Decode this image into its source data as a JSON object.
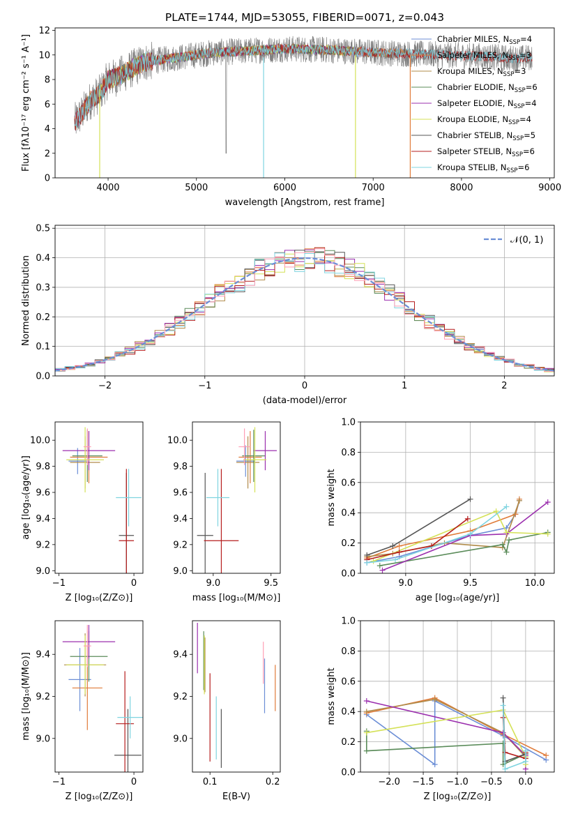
{
  "colors": {
    "palette": [
      "#6b8ed6",
      "#e07b39",
      "#b08b4a",
      "#5b8c5a",
      "#9b2fae",
      "#d4e157",
      "#555555",
      "#b51c1c",
      "#7fd4e0",
      "#ff9eb5"
    ]
  },
  "chart_data": [
    {
      "id": "spectrum",
      "type": "line",
      "title": "PLATE=1744, MJD=53055, FIBERID=0071, z=0.043",
      "xlabel": "wavelength [Angstrom, rest frame]",
      "ylabel": "Flux [fλ10⁻¹⁷ erg cm⁻² s⁻¹ A⁻¹]",
      "xlim": [
        3400,
        9050
      ],
      "ylim": [
        0,
        12.2
      ],
      "xticks": [
        4000,
        5000,
        6000,
        7000,
        8000,
        9000
      ],
      "yticks": [
        0,
        2,
        4,
        6,
        8,
        10,
        12
      ],
      "grid": false,
      "legend_position": "upper right",
      "continuum": {
        "x": [
          3620,
          3700,
          3800,
          3900,
          4000,
          4100,
          4200,
          4300,
          4400,
          4600,
          4800,
          5000,
          5200,
          5500,
          6000,
          6500,
          7000,
          7400,
          7800,
          8200,
          8600,
          8800
        ],
        "y": [
          4.5,
          5.2,
          6.3,
          6.8,
          8.0,
          8.2,
          8.6,
          9.0,
          9.4,
          9.6,
          9.8,
          10.0,
          10.2,
          10.3,
          10.5,
          10.4,
          10.2,
          10.1,
          10.0,
          9.9,
          9.7,
          9.8
        ]
      },
      "series": [
        {
          "name": "Chabrier MILES, N_SSP=4",
          "range": [
            3620,
            7420
          ]
        },
        {
          "name": "Salpeter MILES, N_SSP=3",
          "range": [
            3620,
            7420
          ]
        },
        {
          "name": "Kroupa MILES, N_SSP=3",
          "range": [
            3620,
            7420
          ]
        },
        {
          "name": "Chabrier ELODIE, N_SSP=6",
          "range": [
            3900,
            6800
          ]
        },
        {
          "name": "Salpeter ELODIE, N_SSP=4",
          "range": [
            3900,
            6800
          ]
        },
        {
          "name": "Kroupa ELODIE, N_SSP=4",
          "range": [
            3900,
            6800
          ]
        },
        {
          "name": "Chabrier STELIB, N_SSP=5",
          "range": [
            3620,
            8800
          ]
        },
        {
          "name": "Salpeter STELIB, N_SSP=6",
          "range": [
            3620,
            8800
          ]
        },
        {
          "name": "Kroupa STELIB, N_SSP=6",
          "range": [
            3620,
            8800
          ]
        }
      ]
    },
    {
      "id": "residuals",
      "type": "line",
      "xlabel": "(data-model)/error",
      "ylabel": "Normed distribution",
      "xlim": [
        -2.5,
        2.5
      ],
      "ylim": [
        0,
        0.51
      ],
      "xticks": [
        -2,
        -1,
        0,
        1,
        2
      ],
      "yticks": [
        0.0,
        0.1,
        0.2,
        0.3,
        0.4,
        0.5
      ],
      "grid": true,
      "legend_position": "upper right",
      "legend_entries": [
        "𝒩(0, 1)"
      ],
      "gaussian": {
        "mean": 0,
        "sigma": 1
      },
      "bins": {
        "start": -2.5,
        "width": 0.1,
        "count": 50
      }
    },
    {
      "id": "age_vs_Z",
      "type": "scatter",
      "xlabel": "Z [log₁₀(Z/Z⊙)]",
      "ylabel": "age  [log₁₀(age/yr)]",
      "xlim": [
        -1.05,
        0.12
      ],
      "ylim": [
        8.98,
        10.14
      ],
      "xticks": [
        -1,
        0
      ],
      "yticks": [
        9.0,
        9.2,
        9.4,
        9.6,
        9.8,
        10.0
      ],
      "points": [
        {
          "x": -0.75,
          "y": 9.84,
          "xerr": 0.12,
          "yerr": 0.1
        },
        {
          "x": -0.6,
          "y": 9.87,
          "xerr": 0.25,
          "yerr": 0.2
        },
        {
          "x": -0.65,
          "y": 9.83,
          "xerr": 0.2,
          "yerr": 0.2
        },
        {
          "x": -0.62,
          "y": 9.88,
          "xerr": 0.2,
          "yerr": 0.2
        },
        {
          "x": -0.6,
          "y": 9.92,
          "xerr": 0.35,
          "yerr": 0.15
        },
        {
          "x": -0.65,
          "y": 9.85,
          "xerr": 0.25,
          "yerr": 0.25
        },
        {
          "x": -0.1,
          "y": 9.27,
          "xerr": 0.1,
          "yerr": 0.48
        },
        {
          "x": -0.1,
          "y": 9.23,
          "xerr": 0.1,
          "yerr": 0.55
        },
        {
          "x": -0.07,
          "y": 9.56,
          "xerr": 0.17,
          "yerr": 0.22
        },
        {
          "x": -0.62,
          "y": 9.95,
          "xerr": 0.05,
          "yerr": 0.14
        }
      ]
    },
    {
      "id": "age_vs_mass",
      "type": "scatter",
      "xlabel": "mass [log₁₀(M/M⊙)]",
      "ylabel": "",
      "xlim": [
        8.82,
        9.58
      ],
      "ylim": [
        8.98,
        10.14
      ],
      "xticks": [
        9.0,
        9.5
      ],
      "yticks": [
        9.0,
        9.2,
        9.4,
        9.6,
        9.8,
        10.0
      ],
      "points": [
        {
          "x": 9.28,
          "y": 9.84,
          "xerr": 0.08,
          "yerr": 0.12
        },
        {
          "x": 9.32,
          "y": 9.87,
          "xerr": 0.1,
          "yerr": 0.2
        },
        {
          "x": 9.3,
          "y": 9.83,
          "xerr": 0.1,
          "yerr": 0.2
        },
        {
          "x": 9.35,
          "y": 9.88,
          "xerr": 0.1,
          "yerr": 0.2
        },
        {
          "x": 9.45,
          "y": 9.92,
          "xerr": 0.1,
          "yerr": 0.15
        },
        {
          "x": 9.36,
          "y": 9.85,
          "xerr": 0.1,
          "yerr": 0.25
        },
        {
          "x": 8.93,
          "y": 9.27,
          "xerr": 0.07,
          "yerr": 0.48
        },
        {
          "x": 9.07,
          "y": 9.23,
          "xerr": 0.15,
          "yerr": 0.55
        },
        {
          "x": 9.04,
          "y": 9.56,
          "xerr": 0.1,
          "yerr": 0.22
        },
        {
          "x": 9.27,
          "y": 9.95,
          "xerr": 0.05,
          "yerr": 0.14
        }
      ]
    },
    {
      "id": "massweight_vs_age",
      "type": "line",
      "xlabel": "age  [log₁₀(age/yr)]",
      "ylabel": "mass weight",
      "xlim": [
        8.65,
        10.15
      ],
      "ylim": [
        0,
        1
      ],
      "xticks": [
        9.0,
        9.5,
        10.0
      ],
      "yticks": [
        0.0,
        0.2,
        0.4,
        0.6,
        0.8,
        1.0
      ],
      "grid": true,
      "series": [
        {
          "x": [
            8.7,
            8.95,
            9.5,
            9.78,
            9.85,
            9.88
          ],
          "y": [
            0.07,
            0.11,
            0.25,
            0.3,
            0.39,
            0.48
          ]
        },
        {
          "x": [
            8.7,
            8.95,
            9.5,
            9.85,
            9.88
          ],
          "y": [
            0.1,
            0.18,
            0.28,
            0.39,
            0.49
          ]
        },
        {
          "x": [
            8.7,
            8.9,
            9.3,
            9.75,
            9.88
          ],
          "y": [
            0.11,
            0.13,
            0.2,
            0.17,
            0.48
          ]
        },
        {
          "x": [
            8.8,
            9.75,
            9.78,
            9.8,
            10.1
          ],
          "y": [
            0.05,
            0.19,
            0.14,
            0.22,
            0.27
          ]
        },
        {
          "x": [
            8.82,
            9.5,
            9.78,
            10.1
          ],
          "y": [
            0.02,
            0.25,
            0.26,
            0.47
          ]
        },
        {
          "x": [
            8.75,
            9.7,
            9.78,
            10.1
          ],
          "y": [
            0.08,
            0.41,
            0.27,
            0.26
          ]
        },
        {
          "x": [
            8.7,
            8.9,
            9.5
          ],
          "y": [
            0.12,
            0.18,
            0.49
          ]
        },
        {
          "x": [
            8.7,
            8.95,
            9.2,
            9.48
          ],
          "y": [
            0.09,
            0.14,
            0.18,
            0.36
          ]
        },
        {
          "x": [
            8.7,
            8.92,
            9.5,
            9.78
          ],
          "y": [
            0.07,
            0.09,
            0.26,
            0.44
          ]
        }
      ]
    },
    {
      "id": "mass_vs_Z",
      "type": "scatter",
      "xlabel": "Z [log₁₀(Z/Z⊙)]",
      "ylabel": "mass [log₁₀(M/M⊙)]",
      "xlim": [
        -1.05,
        0.12
      ],
      "ylim": [
        8.84,
        9.56
      ],
      "xticks": [
        -1,
        0
      ],
      "yticks": [
        9.0,
        9.2,
        9.4
      ],
      "points": [
        {
          "x": -0.72,
          "y": 9.28,
          "xerr": 0.15,
          "yerr": 0.15
        },
        {
          "x": -0.62,
          "y": 9.24,
          "xerr": 0.2,
          "yerr": 0.2
        },
        {
          "x": -0.65,
          "y": 9.35,
          "xerr": 0.28,
          "yerr": 0.15
        },
        {
          "x": -0.6,
          "y": 9.39,
          "xerr": 0.25,
          "yerr": 0.12
        },
        {
          "x": -0.6,
          "y": 9.46,
          "xerr": 0.35,
          "yerr": 0.08
        },
        {
          "x": -0.65,
          "y": 9.35,
          "xerr": 0.25,
          "yerr": 0.14
        },
        {
          "x": -0.08,
          "y": 8.92,
          "xerr": 0.18,
          "yerr": 0.22
        },
        {
          "x": -0.12,
          "y": 9.07,
          "xerr": 0.12,
          "yerr": 0.25
        },
        {
          "x": -0.05,
          "y": 9.1,
          "xerr": 0.17,
          "yerr": 0.1
        },
        {
          "x": -0.62,
          "y": 9.44,
          "xerr": 0.05,
          "yerr": 0.1
        }
      ]
    },
    {
      "id": "mass_vs_ebv",
      "type": "scatter",
      "xlabel": "E(B-V)",
      "ylabel": "",
      "xlim": [
        0.072,
        0.212
      ],
      "ylim": [
        8.84,
        9.56
      ],
      "xticks": [
        0.1,
        0.2
      ],
      "yticks": [
        9.0,
        9.2,
        9.4
      ],
      "points": [
        {
          "x": 0.187,
          "y": 9.25,
          "yerr": 0.13
        },
        {
          "x": 0.204,
          "y": 9.24,
          "yerr": 0.11
        },
        {
          "x": 0.092,
          "y": 9.35,
          "yerr": 0.13
        },
        {
          "x": 0.09,
          "y": 9.37,
          "yerr": 0.14
        },
        {
          "x": 0.08,
          "y": 9.43,
          "yerr": 0.12
        },
        {
          "x": 0.091,
          "y": 9.35,
          "yerr": 0.14
        },
        {
          "x": 0.118,
          "y": 9.0,
          "yerr": 0.14
        },
        {
          "x": 0.1,
          "y": 9.1,
          "yerr": 0.21
        },
        {
          "x": 0.11,
          "y": 9.05,
          "yerr": 0.15
        },
        {
          "x": 0.185,
          "y": 9.36,
          "yerr": 0.1
        }
      ]
    },
    {
      "id": "massweight_vs_Z",
      "type": "line",
      "xlabel": "Z [log₁₀(Z/Z⊙)]",
      "ylabel": "mass weight",
      "xlim": [
        -2.42,
        0.42
      ],
      "ylim": [
        0,
        1
      ],
      "xticks": [
        -2.0,
        -1.5,
        -1.0,
        -0.5,
        0.0
      ],
      "yticks": [
        0.0,
        0.2,
        0.4,
        0.6,
        0.8,
        1.0
      ],
      "grid": true,
      "series": [
        {
          "x": [
            -2.33,
            -1.33,
            -1.33,
            -0.33,
            0.3
          ],
          "y": [
            0.38,
            0.05,
            0.47,
            0.24,
            0.08
          ]
        },
        {
          "x": [
            -2.33,
            -1.33,
            -0.33,
            0.3
          ],
          "y": [
            0.39,
            0.49,
            0.25,
            0.11
          ]
        },
        {
          "x": [
            -2.33,
            -1.33,
            -0.33,
            0.0
          ],
          "y": [
            0.4,
            0.48,
            0.26,
            0.1
          ]
        },
        {
          "x": [
            -2.33,
            -2.33,
            -0.33,
            -0.33,
            0.0
          ],
          "y": [
            0.27,
            0.14,
            0.19,
            0.05,
            0.12
          ]
        },
        {
          "x": [
            -2.33,
            -0.33,
            0.0,
            0.0
          ],
          "y": [
            0.47,
            0.26,
            0.11,
            0.02
          ]
        },
        {
          "x": [
            -2.33,
            -0.33,
            0.0,
            0.0
          ],
          "y": [
            0.26,
            0.41,
            0.1,
            0.05
          ]
        },
        {
          "x": [
            -0.33,
            -0.3,
            0.0
          ],
          "y": [
            0.49,
            0.07,
            0.12
          ]
        },
        {
          "x": [
            -0.33,
            -0.3,
            0.0,
            0.0
          ],
          "y": [
            0.36,
            0.13,
            0.09,
            0.13
          ]
        },
        {
          "x": [
            -0.33,
            -0.3,
            0.0,
            0.0
          ],
          "y": [
            0.44,
            0.02,
            0.07,
            0.14
          ]
        }
      ]
    }
  ]
}
